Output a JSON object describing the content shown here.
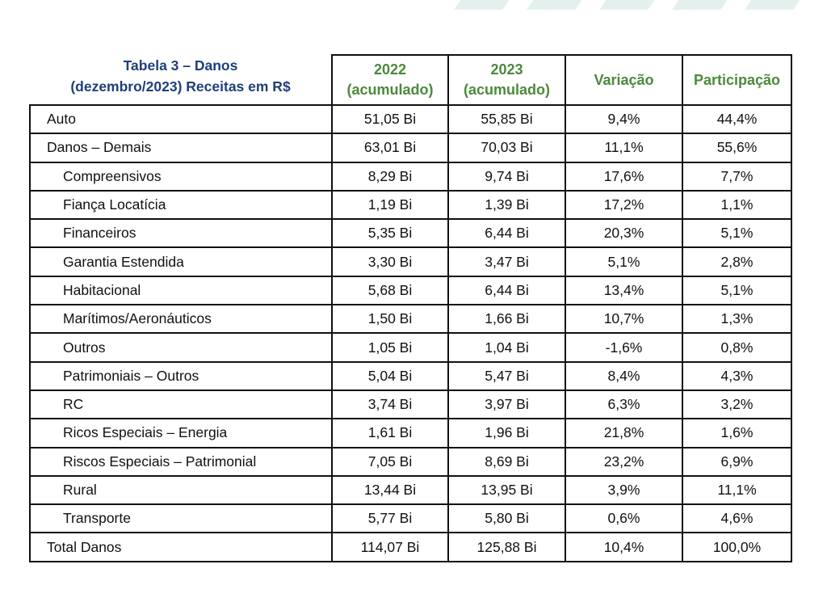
{
  "title": {
    "line1": "Tabela 3 – Danos",
    "line2": "(dezembro/2023) Receitas em R$"
  },
  "headers": {
    "col2": [
      "2022",
      "(acumulado)"
    ],
    "col3": [
      "2023",
      "(acumulado)"
    ],
    "col4": "Variação",
    "col5": "Participação"
  },
  "rows": [
    {
      "label": "Auto",
      "v2022": "51,05 Bi",
      "v2023": "55,85 Bi",
      "variacao": "9,4%",
      "participacao": "44,4%"
    },
    {
      "label": "Danos – Demais",
      "v2022": "63,01 Bi",
      "v2023": "70,03 Bi",
      "variacao": "11,1%",
      "participacao": "55,6%"
    },
    {
      "label": "Compreensivos",
      "v2022": "8,29 Bi",
      "v2023": "9,74 Bi",
      "variacao": "17,6%",
      "participacao": "7,7%"
    },
    {
      "label": "Fiança Locatícia",
      "v2022": "1,19 Bi",
      "v2023": "1,39 Bi",
      "variacao": "17,2%",
      "participacao": "1,1%"
    },
    {
      "label": "Financeiros",
      "v2022": "5,35 Bi",
      "v2023": "6,44 Bi",
      "variacao": "20,3%",
      "participacao": "5,1%"
    },
    {
      "label": "Garantia Estendida",
      "v2022": "3,30 Bi",
      "v2023": "3,47 Bi",
      "variacao": "5,1%",
      "participacao": "2,8%"
    },
    {
      "label": "Habitacional",
      "v2022": "5,68 Bi",
      "v2023": "6,44 Bi",
      "variacao": "13,4%",
      "participacao": "5,1%"
    },
    {
      "label": "Marítimos/Aeronáuticos",
      "v2022": "1,50 Bi",
      "v2023": "1,66 Bi",
      "variacao": "10,7%",
      "participacao": "1,3%"
    },
    {
      "label": "Outros",
      "v2022": "1,05 Bi",
      "v2023": "1,04 Bi",
      "variacao": "-1,6%",
      "participacao": "0,8%"
    },
    {
      "label": "Patrimoniais – Outros",
      "v2022": "5,04 Bi",
      "v2023": "5,47 Bi",
      "variacao": "8,4%",
      "participacao": "4,3%"
    },
    {
      "label": "RC",
      "v2022": "3,74 Bi",
      "v2023": "3,97 Bi",
      "variacao": "6,3%",
      "participacao": "3,2%"
    },
    {
      "label": "Ricos Especiais – Energia",
      "v2022": "1,61 Bi",
      "v2023": "1,96 Bi",
      "variacao": "21,8%",
      "participacao": "1,6%"
    },
    {
      "label": "Riscos Especiais – Patrimonial",
      "v2022": "7,05 Bi",
      "v2023": "8,69 Bi",
      "variacao": "23,2%",
      "participacao": "6,9%"
    },
    {
      "label": "Rural",
      "v2022": "13,44 Bi",
      "v2023": "13,95 Bi",
      "variacao": "3,9%",
      "participacao": "11,1%"
    },
    {
      "label": "Transporte",
      "v2022": "5,77 Bi",
      "v2023": "5,80 Bi",
      "variacao": "0,6%",
      "participacao": "4,6%"
    },
    {
      "label": "Total Danos",
      "v2022": "114,07 Bi",
      "v2023": "125,88 Bi",
      "variacao": "10,4%",
      "participacao": "100,0%"
    }
  ],
  "colors": {
    "title": "#1f3f7a",
    "header_accent": "#4a8a3a",
    "border": "#111111",
    "decoration": "#e3f0ee"
  }
}
